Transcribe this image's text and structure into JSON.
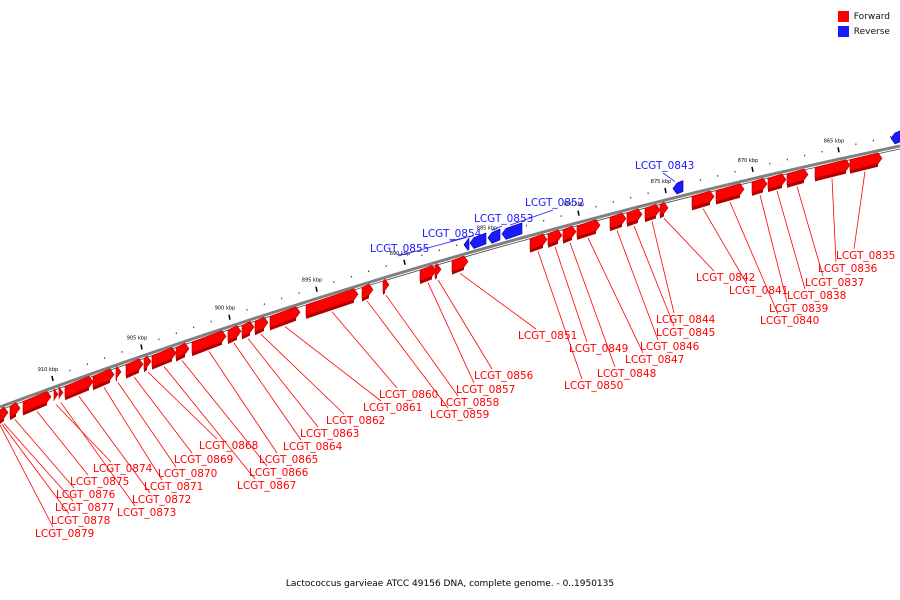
{
  "legend": [
    {
      "label": "Forward",
      "color": "#ff0000"
    },
    {
      "label": "Reverse",
      "color": "#1a1aff"
    }
  ],
  "colors": {
    "forward": "#ff0000",
    "forward_dark": "#b00000",
    "reverse": "#1a1aff",
    "reverse_dark": "#0000a0",
    "backbone": "#808080"
  },
  "footer": "Lactococcus garvieae ATCC 49156 DNA, complete genome. - 0..1950135",
  "ticks": [
    "865 kbp",
    "870 kbp",
    "875 kbp",
    "880 kbp",
    "885 kbp",
    "890 kbp",
    "895 kbp",
    "900 kbp",
    "905 kbp",
    "910 kbp"
  ],
  "forward_genes": [
    "LCGT_0835",
    "LCGT_0836",
    "LCGT_0837",
    "LCGT_0838",
    "LCGT_0839",
    "LCGT_0840",
    "LCGT_0841",
    "LCGT_0842",
    "LCGT_0844",
    "LCGT_0845",
    "LCGT_0846",
    "LCGT_0847",
    "LCGT_0848",
    "LCGT_0849",
    "LCGT_0850",
    "LCGT_0851",
    "LCGT_0856",
    "LCGT_0857",
    "LCGT_0858",
    "LCGT_0859",
    "LCGT_0860",
    "LCGT_0861",
    "LCGT_0862",
    "LCGT_0863",
    "LCGT_0864",
    "LCGT_0865",
    "LCGT_0866",
    "LCGT_0867",
    "LCGT_0868",
    "LCGT_0869",
    "LCGT_0870",
    "LCGT_0871",
    "LCGT_0872",
    "LCGT_0873",
    "LCGT_0874",
    "LCGT_0875",
    "LCGT_0876",
    "LCGT_0877",
    "LCGT_0878",
    "LCGT_0879"
  ],
  "reverse_genes": [
    "LCGT_0843",
    "LCGT_0852",
    "LCGT_0853",
    "LCGT_0854",
    "LCGT_0855"
  ]
}
